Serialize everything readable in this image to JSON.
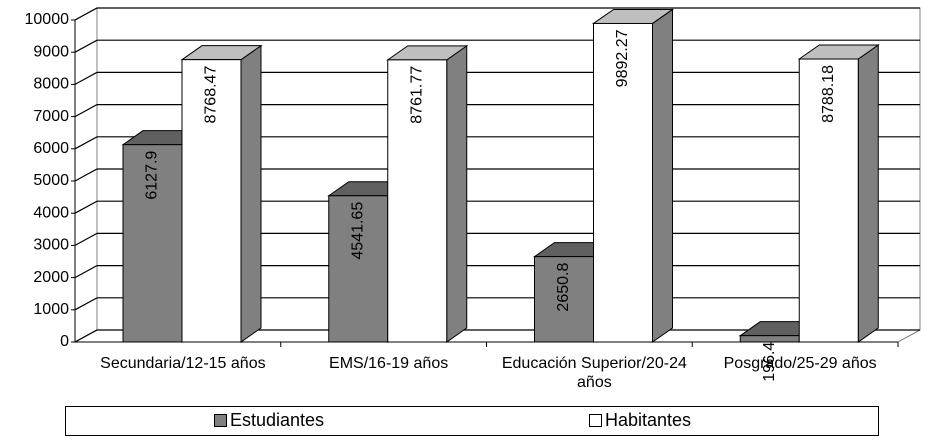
{
  "chart_data": {
    "type": "bar",
    "categories": [
      "Secundaria/12-15 años",
      "EMS/16-19 años",
      "Educación Superior/20-24 años",
      "Posgrado/25-29 años"
    ],
    "series": [
      {
        "name": "Estudiantes",
        "color": "#808080",
        "values": [
          6127.9,
          4541.65,
          2650.8,
          196.4
        ]
      },
      {
        "name": "Habitantes",
        "color": "#ffffff",
        "values": [
          8768.47,
          8761.77,
          9892.27,
          8788.18
        ]
      }
    ],
    "ylim": [
      0,
      10000
    ],
    "yticks": [
      0,
      1000,
      2000,
      3000,
      4000,
      5000,
      6000,
      7000,
      8000,
      9000,
      10000
    ],
    "grid": true,
    "legend": "bottom"
  }
}
